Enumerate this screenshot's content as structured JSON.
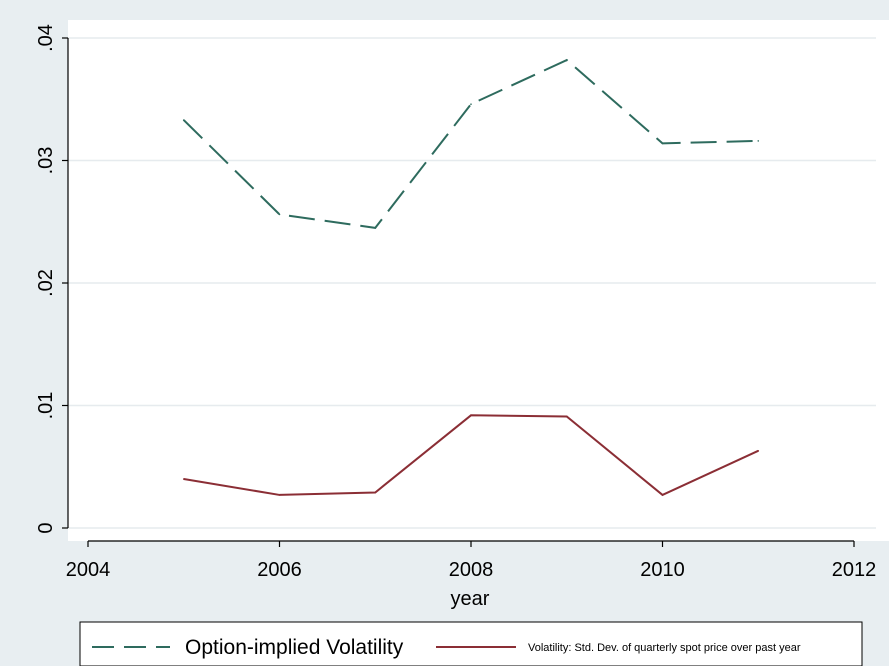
{
  "chart_data": {
    "type": "line",
    "title": "",
    "xlabel": "year",
    "ylabel": "",
    "xlim": [
      2004,
      2012
    ],
    "ylim": [
      0,
      0.04
    ],
    "x_ticks": [
      "2004",
      "2006",
      "2008",
      "2010",
      "2012"
    ],
    "y_ticks": [
      "0",
      ".01",
      ".02",
      ".03",
      ".04"
    ],
    "grid": "horizontal",
    "legend_position": "bottom",
    "x": [
      2005,
      2006,
      2007,
      2008,
      2009,
      2010,
      2011
    ],
    "series": [
      {
        "name": "Option-implied Volatility",
        "values": [
          0.0333,
          0.0256,
          0.0245,
          0.0346,
          0.0382,
          0.0314,
          0.0316
        ],
        "color": "#2e6b5e",
        "style": "dashed"
      },
      {
        "name": "Volatility: Std. Dev. of quarterly spot price over past year",
        "values": [
          0.004,
          0.0027,
          0.0029,
          0.0092,
          0.0091,
          0.0027,
          0.0063
        ],
        "color": "#8b2e35",
        "style": "solid"
      }
    ]
  }
}
